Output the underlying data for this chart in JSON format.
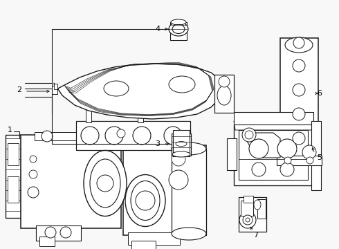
{
  "bg": "#f8f8f8",
  "lc": "#1a1a1a",
  "figsize": [
    4.9,
    3.6
  ],
  "dpi": 100,
  "xlim": [
    0,
    490
  ],
  "ylim": [
    0,
    360
  ]
}
